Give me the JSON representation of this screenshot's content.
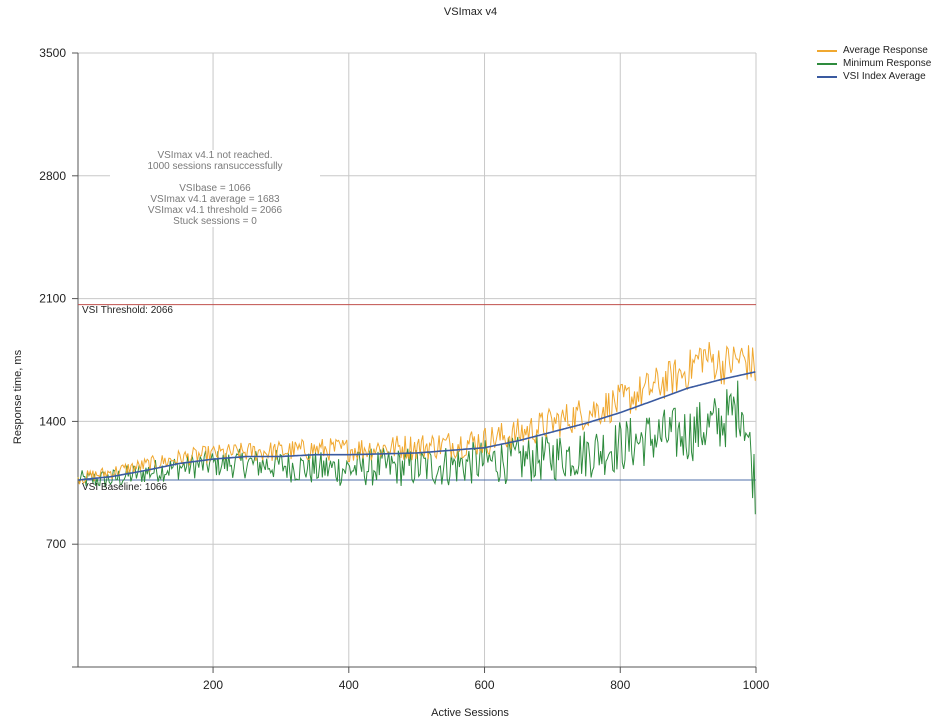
{
  "chart_data": {
    "type": "line",
    "title": "VSImax v4",
    "xlabel": "Active Sessions",
    "ylabel": "Response time, ms",
    "xlim": [
      1,
      1000
    ],
    "ylim": [
      0,
      3500
    ],
    "x_ticks": [
      200,
      400,
      600,
      800,
      1000
    ],
    "y_ticks": [
      700,
      1400,
      2100,
      2800,
      3500
    ],
    "grid": true,
    "legend_position": "top-right outside",
    "reference_lines": [
      {
        "label": "VSI Threshold: 2066",
        "value": 2066,
        "color": "#c0504d"
      },
      {
        "label": "VSI Baseline: 1066",
        "value": 1066,
        "color": "#4f6fa8"
      }
    ],
    "annotation": [
      "VSImax v4.1 not reached.",
      "1000 sessions ransuccessfully",
      "",
      "VSIbase = 1066",
      "VSImax v4.1 average = 1683",
      "VSImax v4.1 threshold = 2066",
      "Stuck sessions = 0"
    ],
    "series": [
      {
        "name": "Average Response",
        "color": "#f0a830",
        "x": [
          1,
          50,
          100,
          150,
          200,
          250,
          300,
          350,
          400,
          450,
          500,
          550,
          600,
          650,
          700,
          750,
          800,
          850,
          900,
          920,
          950,
          980,
          1000
        ],
        "values": [
          1075,
          1110,
          1150,
          1190,
          1215,
          1225,
          1230,
          1240,
          1240,
          1250,
          1255,
          1270,
          1290,
          1330,
          1390,
          1450,
          1510,
          1600,
          1690,
          1780,
          1720,
          1760,
          1700
        ]
      },
      {
        "name": "Minimum Response",
        "color": "#2e8b3d",
        "x": [
          1,
          50,
          100,
          150,
          200,
          250,
          300,
          350,
          400,
          450,
          500,
          550,
          600,
          650,
          700,
          750,
          800,
          850,
          900,
          950,
          980,
          1000
        ],
        "values": [
          1066,
          1070,
          1110,
          1140,
          1160,
          1160,
          1150,
          1130,
          1130,
          1140,
          1140,
          1150,
          1170,
          1180,
          1200,
          1220,
          1260,
          1310,
          1330,
          1400,
          1500,
          1020
        ]
      },
      {
        "name": "VSI Index Average",
        "color": "#3a5aa0",
        "x": [
          1,
          50,
          100,
          150,
          200,
          250,
          300,
          350,
          400,
          450,
          500,
          550,
          600,
          650,
          700,
          750,
          800,
          850,
          900,
          950,
          1000
        ],
        "values": [
          1066,
          1085,
          1120,
          1160,
          1185,
          1200,
          1200,
          1210,
          1210,
          1215,
          1220,
          1235,
          1250,
          1290,
          1340,
          1390,
          1450,
          1520,
          1590,
          1640,
          1683
        ]
      }
    ]
  }
}
